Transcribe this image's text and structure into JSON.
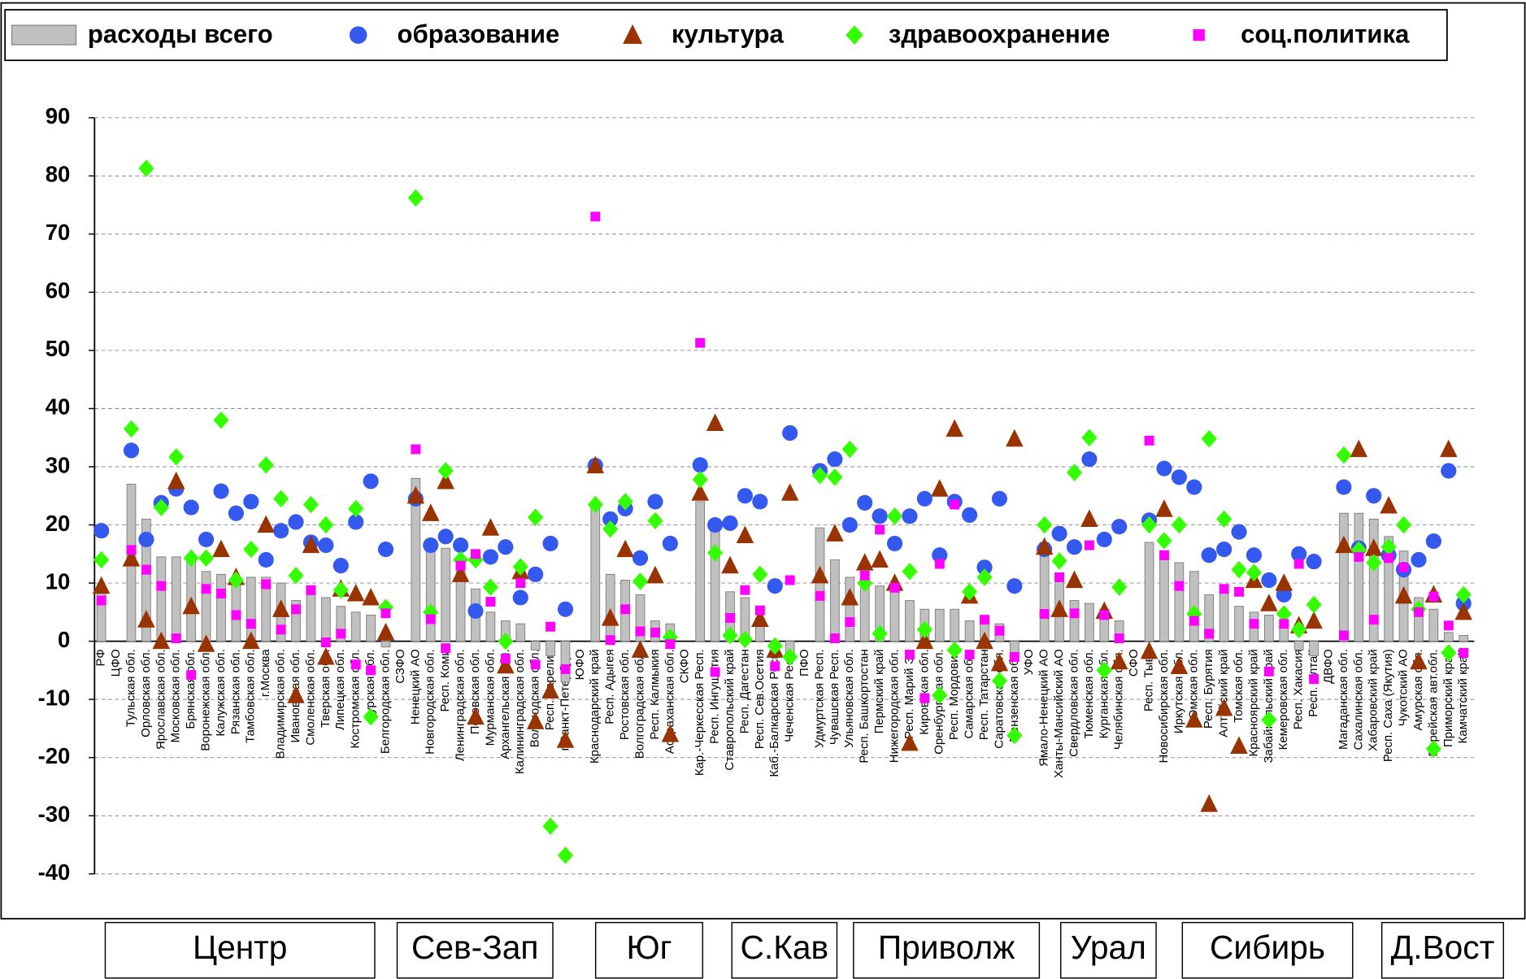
{
  "chart_data": {
    "type": "bar",
    "categories": [
      "РФ",
      "ЦФО",
      "Тульская обл.",
      "Орловская обл.",
      "Ярославская обл.",
      "Московская обл.",
      "Брянская обл.",
      "Воронежская обл.",
      "Калужская обл.",
      "Рязанская обл.",
      "Тамбовская обл.",
      "г.Москва",
      "Владимирская обл.",
      "Ивановская обл.",
      "Смоленская обл.",
      "Тверская обл.",
      "Липецкая обл.",
      "Костромская обл.",
      "Курская обл.",
      "Белгородская обл.",
      "СЗФО",
      "Ненецкий АО",
      "Новгородская обл.",
      "Респ. Коми",
      "Ленинградская обл.",
      "Псковская обл.",
      "Мурманская обл.",
      "Архангельская обл.",
      "Калининградская обл.",
      "Вологодская обл.",
      "Респ. Карелия",
      "г.Санкт-Петербург",
      "ЮФО",
      "Краснодарский край",
      "Респ. Адыгея",
      "Ростовская обл.",
      "Волгоградская обл.",
      "Респ. Калмыкия",
      "Астраханская обл.",
      "СКФО",
      "Кар.-Черкесская Респ.",
      "Респ. Ингушетия",
      "Ставропольский край",
      "Респ. Дагестан",
      "Респ. Сев.Осетия",
      "Каб.-Балкарская Респ.",
      "Чеченская Респ.",
      "ПФО",
      "Удмуртская Респ.",
      "Чувашская Респ.",
      "Ульяновская обл.",
      "Респ. Башкортостан",
      "Пермский край",
      "Нижегородская обл.",
      "Респ. Марий Эл",
      "Кировская обл.",
      "Оренбургская обл.",
      "Респ. Мордовия",
      "Самарская обл.",
      "Респ. Татарстан",
      "Саратовская обл.",
      "Пензенская обл.",
      "УФО",
      "Ямало-Ненецкий АО",
      "Ханты-Мансийский АО",
      "Свердловская обл.",
      "Тюменская обл.",
      "Курганская обл.",
      "Челябинская обл.",
      "СФО",
      "Респ. Тыва",
      "Новосибирская обл.",
      "Иркутская обл.",
      "Омская обл.",
      "Респ. Бурятия",
      "Алтайский край",
      "Томская обл.",
      "Красноярский край",
      "Забайкальский край",
      "Кемеровская обл.",
      "Респ. Хакасия",
      "Респ. Алтай",
      "ДВФО",
      "Магаданская обл.",
      "Сахалинская обл.",
      "Хабаровский край",
      "Респ. Саха (Якутия)",
      "Чукотский АО",
      "Амурская обл.",
      "Еврейская авт.обл.",
      "Приморский край",
      "Камчатский край"
    ],
    "series": [
      {
        "name": "расходы всего",
        "marker": "bar",
        "color": "#c0c0c0",
        "values": [
          9,
          null,
          27,
          21,
          14.5,
          14.5,
          14,
          12,
          11.5,
          10,
          11,
          11,
          10,
          7,
          8,
          7.5,
          6,
          5,
          4.5,
          -1,
          null,
          28,
          17,
          16,
          13,
          9,
          5,
          3.5,
          3,
          -1.5,
          -2.5,
          -7,
          null,
          24,
          11.5,
          10.5,
          8,
          3.5,
          3,
          null,
          24,
          19,
          8.5,
          7.5,
          4,
          -1,
          -2.5,
          null,
          19.5,
          14,
          11,
          10,
          9.5,
          9,
          7,
          5.5,
          5.5,
          5.5,
          3.5,
          3,
          3,
          -2,
          null,
          17,
          11,
          7,
          6.5,
          5.5,
          3.5,
          null,
          17,
          14,
          13.5,
          12,
          8,
          8.5,
          6,
          5,
          4.5,
          3,
          -1.5,
          -2.5,
          null,
          22,
          22,
          21,
          18,
          15.5,
          7.5,
          5.5,
          1.5,
          1
        ]
      },
      {
        "name": "образование",
        "marker": "circle",
        "color": "#3359ee",
        "values": [
          19,
          null,
          32.8,
          17.5,
          23.8,
          26.2,
          23,
          17.5,
          25.8,
          22,
          24,
          14,
          19,
          20.5,
          17,
          16.5,
          13,
          20.5,
          27.5,
          15.8,
          null,
          24.5,
          16.5,
          18,
          16.5,
          5.2,
          14.5,
          16.2,
          7.5,
          11.5,
          16.8,
          5.5,
          null,
          30.2,
          21,
          22.8,
          14.3,
          24,
          16.8,
          null,
          30.3,
          20,
          20.3,
          25,
          24,
          9.5,
          35.8,
          null,
          29.3,
          31.3,
          20,
          23.8,
          21.5,
          16.8,
          21.5,
          24.5,
          14.8,
          24,
          21.7,
          12.7,
          24.5,
          9.5,
          null,
          15.8,
          18.5,
          16.2,
          31.3,
          17.5,
          19.7,
          null,
          20.8,
          29.7,
          28.2,
          26.5,
          14.8,
          15.8,
          18.8,
          14.8,
          10.5,
          8,
          15,
          13.7,
          null,
          26.5,
          16,
          25,
          14.8,
          12.3,
          14,
          17.2,
          29.3,
          6.5
        ]
      },
      {
        "name": "культура",
        "marker": "triangle",
        "color": "#993300",
        "values": [
          9.5,
          null,
          14.2,
          3.7,
          0,
          27.5,
          6,
          -0.5,
          15.8,
          11,
          0,
          20,
          5.5,
          -9.3,
          16.5,
          -2.7,
          9,
          8.2,
          7.5,
          1.5,
          null,
          25,
          22,
          27.5,
          11.5,
          -13,
          19.5,
          -4.2,
          12,
          -13.8,
          -8.5,
          -17,
          null,
          30.2,
          4,
          15.8,
          -1.5,
          11.3,
          -16,
          null,
          25.5,
          37.5,
          13,
          18.2,
          3.8,
          -1.5,
          25.5,
          null,
          11.3,
          18.5,
          7.5,
          13.5,
          14,
          10,
          -17.5,
          0,
          26.2,
          36.5,
          7.8,
          0,
          -3.8,
          34.8,
          null,
          16.2,
          5.5,
          10.5,
          21,
          5.2,
          -3.5,
          null,
          -1.7,
          22.7,
          -4.3,
          -13.5,
          -28,
          -11.5,
          -18,
          10.5,
          6.5,
          10,
          2.7,
          3.5,
          null,
          16.5,
          33,
          16,
          23.3,
          7.8,
          -3.5,
          8,
          33,
          5
        ]
      },
      {
        "name": "здравоохранение",
        "marker": "diamond",
        "color": "#33ff00",
        "values": [
          14,
          null,
          36.5,
          81.3,
          23,
          31.7,
          14.3,
          14.3,
          38,
          10.5,
          15.8,
          30.3,
          24.5,
          11.3,
          23.5,
          20,
          8.8,
          22.8,
          -13,
          5.8,
          null,
          76.2,
          5,
          29.3,
          14,
          14,
          9.3,
          0,
          12.8,
          21.3,
          -31.8,
          -36.8,
          null,
          23.5,
          19.3,
          24,
          10.3,
          20.7,
          0.7,
          null,
          27.8,
          15.2,
          1,
          0.3,
          11.5,
          -0.8,
          -2.7,
          null,
          28.5,
          28.2,
          33,
          10,
          1.3,
          21.5,
          12,
          2,
          -9.3,
          -1.5,
          8.5,
          11,
          -6.8,
          -16.2,
          null,
          20,
          13.8,
          29,
          35,
          -5,
          9.3,
          null,
          20,
          17.3,
          20,
          4.7,
          34.8,
          21,
          12.3,
          11.8,
          -13.5,
          4.7,
          2,
          6.3,
          null,
          32,
          15.7,
          13.5,
          16.2,
          20,
          5.5,
          -18.5,
          -2,
          8
        ]
      },
      {
        "name": "соц.политика",
        "marker": "square",
        "color": "#ff00ff",
        "values": [
          7,
          null,
          15.7,
          12.3,
          9.5,
          0.5,
          -5.8,
          9,
          8.2,
          4.5,
          3,
          9.8,
          2,
          5.5,
          8.8,
          -0.2,
          1.3,
          -4,
          -5,
          4.8,
          null,
          33,
          3.8,
          -1.2,
          13,
          15,
          6.8,
          -3,
          10,
          -4,
          2.5,
          -4.8,
          null,
          73,
          0.2,
          5.5,
          1.7,
          1.5,
          -0.5,
          null,
          51.3,
          -5.3,
          4,
          8.8,
          5.3,
          -4.3,
          10.5,
          null,
          7.8,
          0.5,
          3.3,
          11.3,
          19.2,
          9.2,
          -2.3,
          -9.8,
          13.3,
          23.5,
          -2.3,
          3.7,
          1.8,
          -2.7,
          null,
          4.7,
          11,
          4.8,
          16.5,
          4.5,
          0.5,
          null,
          34.5,
          14.8,
          9.5,
          3.5,
          1.3,
          9,
          8.5,
          3,
          -5.2,
          3,
          13.3,
          -6.5,
          null,
          1,
          14.5,
          3.7,
          14.3,
          12.7,
          5,
          7.7,
          2.7,
          -2
        ]
      }
    ],
    "ylim": [
      -40,
      90
    ],
    "yticks": [
      -40,
      -30,
      -20,
      -10,
      0,
      10,
      20,
      30,
      40,
      50,
      60,
      70,
      80,
      90
    ],
    "grid": true,
    "regions": [
      "Центр",
      "Сев-Зап",
      "Юг",
      "С.Кав",
      "Приволж",
      "Урал",
      "Сибирь",
      "Д.Вост"
    ]
  }
}
